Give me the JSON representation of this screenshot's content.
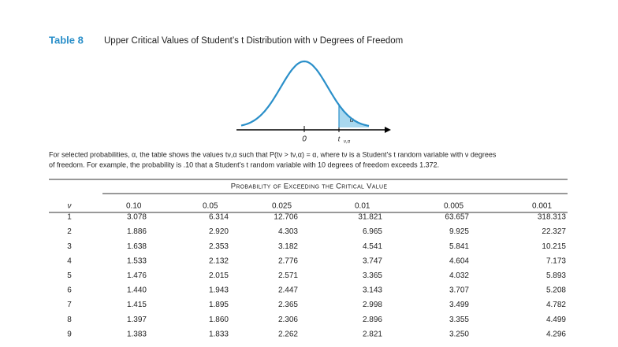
{
  "header": {
    "label": "Table 8",
    "title": "Upper Critical Values of Student’s t Distribution with ν Degrees of Freedom"
  },
  "figure": {
    "zero": "0",
    "t_label": "t",
    "t_sub": "ν,α",
    "alpha": "α"
  },
  "description": [
    "For selected probabilities, α, the table shows the values tν,α such that P(tν > tν,α) = α, where tν is a Student’s t random variable with ν degrees",
    "of freedom. For example, the probability is .10 that a Student’s t random variable with 10 degrees of freedom exceeds 1.372."
  ],
  "table": {
    "caption": "Probability of Exceeding the Critical Value",
    "columns": [
      "ν",
      "0.10",
      "0.05",
      "0.025",
      "0.01",
      "0.005",
      "0.001"
    ],
    "rows": [
      [
        "1",
        "3.078",
        "6.314",
        "12.706",
        "31.821",
        "63.657",
        "318.313"
      ],
      [
        "2",
        "1.886",
        "2.920",
        "4.303",
        "6.965",
        "9.925",
        "22.327"
      ],
      [
        "3",
        "1.638",
        "2.353",
        "3.182",
        "4.541",
        "5.841",
        "10.215"
      ],
      [
        "4",
        "1.533",
        "2.132",
        "2.776",
        "3.747",
        "4.604",
        "7.173"
      ],
      [
        "5",
        "1.476",
        "2.015",
        "2.571",
        "3.365",
        "4.032",
        "5.893"
      ],
      [
        "6",
        "1.440",
        "1.943",
        "2.447",
        "3.143",
        "3.707",
        "5.208"
      ],
      [
        "7",
        "1.415",
        "1.895",
        "2.365",
        "2.998",
        "3.499",
        "4.782"
      ],
      [
        "8",
        "1.397",
        "1.860",
        "2.306",
        "2.896",
        "3.355",
        "4.499"
      ],
      [
        "9",
        "1.383",
        "1.833",
        "2.262",
        "2.821",
        "3.250",
        "4.296"
      ]
    ]
  }
}
